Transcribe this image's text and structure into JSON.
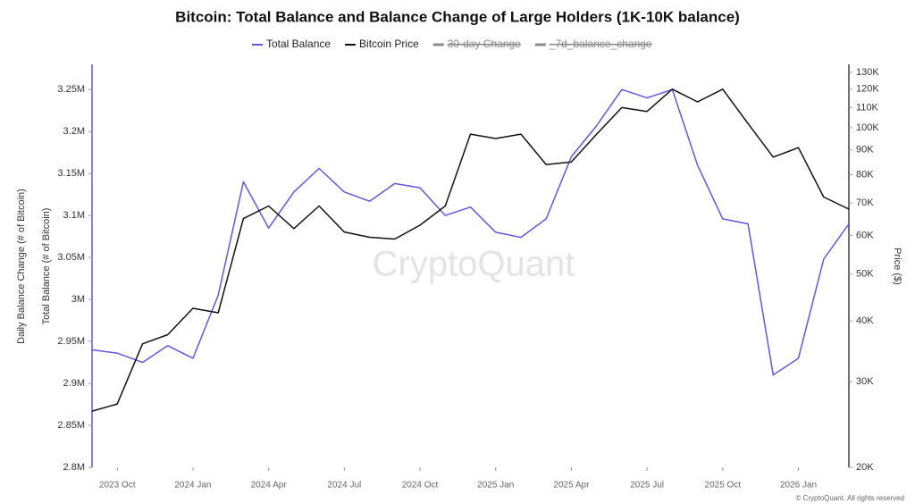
{
  "chart_data": {
    "type": "line",
    "title": "Bitcoin: Total Balance and Balance Change of Large Holders (1K-10K balance)",
    "y_axis_titles": [
      "Daily Balance Change (# of Bitcoin)",
      "Total Balance (# of Bitcoin)"
    ],
    "y2_axis_title": "Price ($)",
    "watermark": "CryptoQuant",
    "footer": "© CryptoQuant. All rights reserved",
    "x": [
      "2023-09",
      "2023-10",
      "2023-11",
      "2023-12",
      "2024-01",
      "2024-02",
      "2024-03",
      "2024-04",
      "2024-05",
      "2024-06",
      "2024-07",
      "2024-08",
      "2024-09",
      "2024-10",
      "2024-11",
      "2024-12",
      "2025-01",
      "2025-02",
      "2025-03",
      "2025-04",
      "2025-05",
      "2025-06",
      "2025-07",
      "2025-08",
      "2025-09",
      "2025-10",
      "2025-11",
      "2025-12",
      "2026-01",
      "2026-02",
      "2026-03"
    ],
    "xlim": [
      "2023-09",
      "2026-03"
    ],
    "xticks": [
      {
        "value": "2023-10",
        "label": "2023 Oct"
      },
      {
        "value": "2024-01",
        "label": "2024 Jan"
      },
      {
        "value": "2024-04",
        "label": "2024 Apr"
      },
      {
        "value": "2024-07",
        "label": "2024 Jul"
      },
      {
        "value": "2024-10",
        "label": "2024 Oct"
      },
      {
        "value": "2025-01",
        "label": "2025 Jan"
      },
      {
        "value": "2025-04",
        "label": "2025 Apr"
      },
      {
        "value": "2025-07",
        "label": "2025 Jul"
      },
      {
        "value": "2025-10",
        "label": "2025 Oct"
      },
      {
        "value": "2026-01",
        "label": "2026 Jan"
      }
    ],
    "ylim": [
      2800000,
      3280000
    ],
    "yticks": [
      {
        "value": 2800000,
        "label": "2.8M"
      },
      {
        "value": 2850000,
        "label": "2.85M"
      },
      {
        "value": 2900000,
        "label": "2.9M"
      },
      {
        "value": 2950000,
        "label": "2.95M"
      },
      {
        "value": 3000000,
        "label": "3M"
      },
      {
        "value": 3050000,
        "label": "3.05M"
      },
      {
        "value": 3100000,
        "label": "3.1M"
      },
      {
        "value": 3150000,
        "label": "3.15M"
      },
      {
        "value": 3200000,
        "label": "3.2M"
      },
      {
        "value": 3250000,
        "label": "3.25M"
      }
    ],
    "y2lim": [
      20000,
      135000
    ],
    "y2_log": true,
    "y2ticks": [
      {
        "value": 20000,
        "label": "20K"
      },
      {
        "value": 30000,
        "label": "30K"
      },
      {
        "value": 40000,
        "label": "40K"
      },
      {
        "value": 50000,
        "label": "50K"
      },
      {
        "value": 60000,
        "label": "60K"
      },
      {
        "value": 70000,
        "label": "70K"
      },
      {
        "value": 80000,
        "label": "80K"
      },
      {
        "value": 90000,
        "label": "90K"
      },
      {
        "value": 100000,
        "label": "100K"
      },
      {
        "value": 110000,
        "label": "110K"
      },
      {
        "value": 120000,
        "label": "120K"
      },
      {
        "value": 130000,
        "label": "130K"
      }
    ],
    "series": [
      {
        "name": "Total Balance",
        "color": "#6655e0",
        "values": [
          2940000,
          2936000,
          2925000,
          2945000,
          2930000,
          3005000,
          3140000,
          3085000,
          3128000,
          3156000,
          3128000,
          3117000,
          3138000,
          3133000,
          3100000,
          3110000,
          3080000,
          3074000,
          3096000,
          3170000,
          3207000,
          3250000,
          3240000,
          3250000,
          3160000,
          3096000,
          3090000,
          2910000,
          2930000,
          3048000,
          3090000
        ]
      },
      {
        "name": "Bitcoin Price",
        "color": "#111111",
        "axis": "y2",
        "values": [
          26100,
          27000,
          35900,
          37500,
          42500,
          41600,
          65000,
          69000,
          62000,
          69000,
          61000,
          59500,
          59000,
          63000,
          69000,
          97000,
          95000,
          97000,
          84000,
          85000,
          97000,
          110000,
          108000,
          120000,
          113000,
          120000,
          102000,
          87000,
          91000,
          72000,
          68000
        ]
      }
    ],
    "hidden_series": [
      {
        "name": "30-day Change",
        "color": "#888888"
      },
      {
        "name": "_7d_balance_change",
        "color": "#888888"
      }
    ]
  }
}
